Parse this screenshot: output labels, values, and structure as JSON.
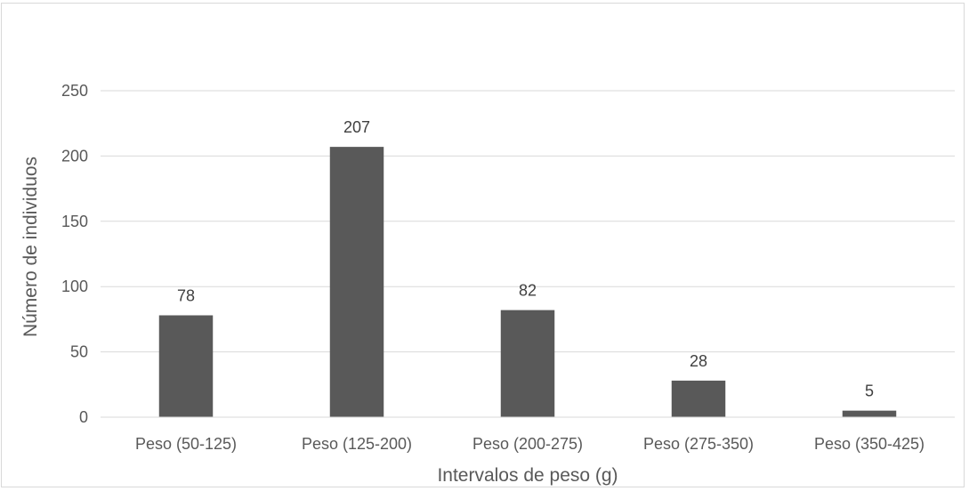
{
  "chart_data": {
    "type": "bar",
    "title": "",
    "xlabel": "Intervalos de peso (g)",
    "ylabel": "Número de individuos",
    "categories": [
      "Peso (50-125)",
      "Peso (125-200)",
      "Peso (200-275)",
      "Peso (275-350)",
      "Peso (350-425)"
    ],
    "values": [
      78,
      207,
      82,
      28,
      5
    ],
    "data_labels": [
      "78",
      "207",
      "82",
      "28",
      "5"
    ],
    "ylim": [
      0,
      250
    ],
    "yticks": [
      "0",
      "50",
      "100",
      "150",
      "200",
      "250"
    ],
    "grid": true,
    "legend": "none",
    "bar_color": "#595959",
    "grid_color": "#d9d9d9"
  }
}
